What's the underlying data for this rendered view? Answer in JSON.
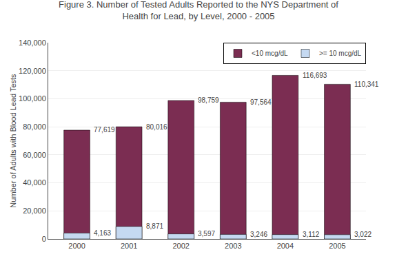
{
  "chart_data": {
    "type": "bar",
    "title": "Figure 3. Number of Tested Adults Reported to the NYS Department of\nHealth for Lead, by Level, 2000 - 2005",
    "ylabel": "Number of Adults with Blood Lead Tests",
    "categories": [
      "2000",
      "2001",
      "2002",
      "2003",
      "2004",
      "2005"
    ],
    "series": [
      {
        "name": "<10 mcg/dL",
        "color": "#7B2D52",
        "values": [
          77619,
          80016,
          98759,
          97564,
          116693,
          110341
        ],
        "value_labels": [
          "77,619",
          "80,016",
          "98,759",
          "97,564",
          "116,693",
          "110,341"
        ]
      },
      {
        "name": ">= 10 mcg/dL",
        "color": "#C5D9F1",
        "values": [
          4163,
          8871,
          3597,
          3246,
          3112,
          3022
        ],
        "value_labels": [
          "4,163",
          "8,871",
          "3,597",
          "3,246",
          "3,112",
          "3,022"
        ]
      }
    ],
    "ylim": [
      0,
      140000
    ],
    "yticks": [
      0,
      {
        "value": 20000,
        "label": "20,000"
      },
      {
        "value": 40000,
        "label": "40,000"
      },
      {
        "value": 60000,
        "label": "60,000"
      },
      {
        "value": 80000,
        "label": "80,000"
      },
      {
        "value": 100000,
        "label": "100,000"
      },
      {
        "value": 120000,
        "label": "120,000"
      },
      {
        "value": 140000,
        "label": "140,000"
      }
    ],
    "grid": true,
    "legend": "upper right",
    "data_labels": true
  }
}
